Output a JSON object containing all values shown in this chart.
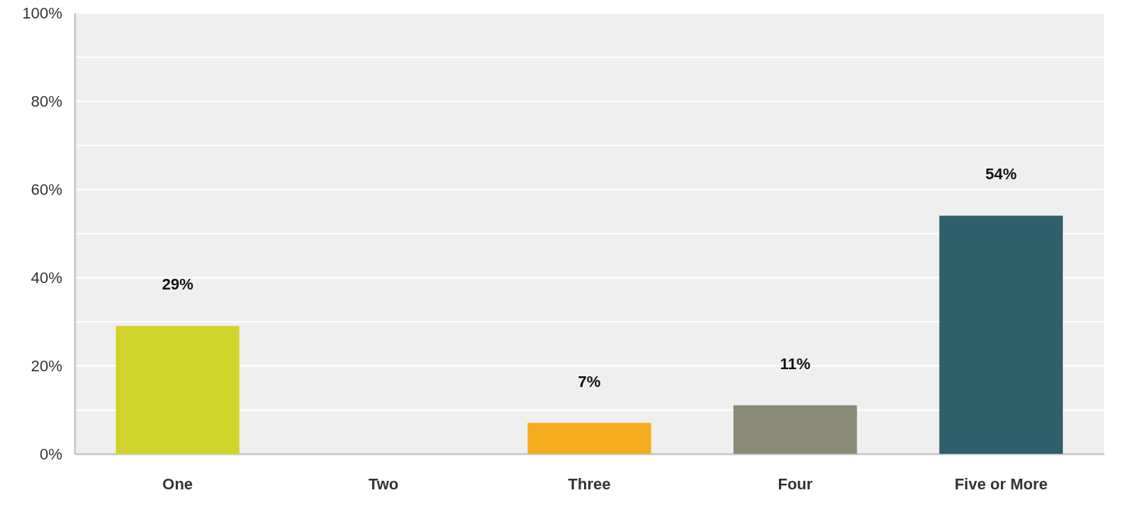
{
  "chart_data": {
    "type": "bar",
    "categories": [
      "One",
      "Two",
      "Three",
      "Four",
      "Five or More"
    ],
    "values": [
      29,
      0,
      7,
      11,
      54
    ],
    "colors": [
      "#d0d42a",
      "#2e5f6b",
      "#f5ad1e",
      "#8a8a78",
      "#2e5f6b"
    ],
    "value_labels": [
      "29%",
      null,
      "7%",
      "11%",
      "54%"
    ],
    "ylim": [
      0,
      100
    ],
    "yticks": [
      {
        "value": 0,
        "label": "0%"
      },
      {
        "value": 10,
        "label": null
      },
      {
        "value": 20,
        "label": "20%"
      },
      {
        "value": 30,
        "label": null
      },
      {
        "value": 40,
        "label": "40%"
      },
      {
        "value": 50,
        "label": null
      },
      {
        "value": 60,
        "label": "60%"
      },
      {
        "value": 70,
        "label": null
      },
      {
        "value": 80,
        "label": "80%"
      },
      {
        "value": 90,
        "label": null
      },
      {
        "value": 100,
        "label": "100%"
      }
    ],
    "grid": "y"
  }
}
